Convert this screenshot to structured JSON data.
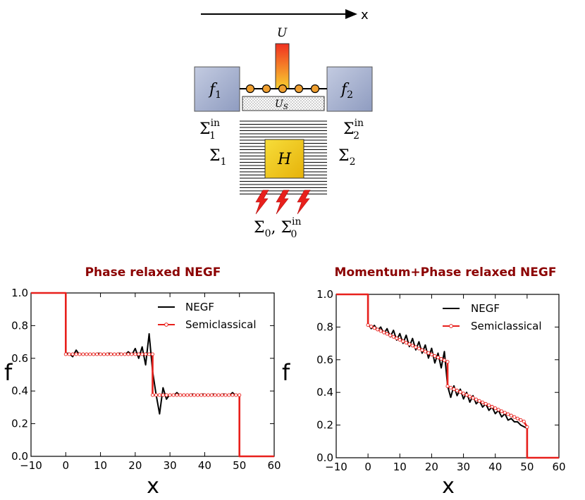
{
  "diagram": {
    "axis_label": "x",
    "reservoir_left": {
      "symbol": "f",
      "sub": "1"
    },
    "reservoir_right": {
      "symbol": "f",
      "sub": "2"
    },
    "potential_top": "U",
    "potential_s": {
      "symbol": "U",
      "sub": "S"
    },
    "hamiltonian": "H",
    "sigma_in_left": {
      "symbol": "Σ",
      "sub": "1",
      "sup": "in"
    },
    "sigma_in_right": {
      "symbol": "Σ",
      "sub": "2",
      "sup": "in"
    },
    "sigma_left": {
      "symbol": "Σ",
      "sub": "1"
    },
    "sigma_right": {
      "symbol": "Σ",
      "sub": "2"
    },
    "sigma_zero": {
      "symbol": "Σ",
      "sub": "0",
      "sep": ", ",
      "symbol2": "Σ",
      "sub2": "0",
      "sup2": "in"
    },
    "colors": {
      "reservoir": "#a9b5d3",
      "hamiltonian": "#f0c419",
      "site": "#f0a030",
      "bolt": "#e8201c",
      "potential_top": "#f03020",
      "potential_bottom": "#f8d030"
    }
  },
  "chart_data": [
    {
      "type": "line",
      "title": "Phase relaxed NEGF",
      "xlabel": "x",
      "ylabel": "f",
      "xlim": [
        -10,
        60
      ],
      "ylim": [
        0.0,
        1.0
      ],
      "xticks": [
        "−10",
        "0",
        "10",
        "20",
        "30",
        "40",
        "50",
        "60"
      ],
      "yticks": [
        "0.0",
        "0.2",
        "0.4",
        "0.6",
        "0.8",
        "1.0"
      ],
      "legend": [
        "NEGF",
        "Semiclassical"
      ],
      "legend_position": "top-right",
      "series": [
        {
          "name": "NEGF",
          "color": "#000000",
          "points": [
            [
              -10,
              1.0
            ],
            [
              0,
              1.0
            ],
            [
              0,
              0.63
            ],
            [
              1,
              0.63
            ],
            [
              2,
              0.61
            ],
            [
              3,
              0.65
            ],
            [
              4,
              0.62
            ],
            [
              5,
              0.63
            ],
            [
              6,
              0.62
            ],
            [
              7,
              0.63
            ],
            [
              8,
              0.62
            ],
            [
              9,
              0.63
            ],
            [
              10,
              0.63
            ],
            [
              11,
              0.62
            ],
            [
              12,
              0.63
            ],
            [
              13,
              0.63
            ],
            [
              14,
              0.62
            ],
            [
              15,
              0.63
            ],
            [
              16,
              0.63
            ],
            [
              17,
              0.62
            ],
            [
              18,
              0.64
            ],
            [
              19,
              0.62
            ],
            [
              20,
              0.66
            ],
            [
              21,
              0.6
            ],
            [
              22,
              0.67
            ],
            [
              23,
              0.56
            ],
            [
              24,
              0.75
            ],
            [
              25,
              0.52
            ],
            [
              26,
              0.38
            ],
            [
              27,
              0.26
            ],
            [
              28,
              0.42
            ],
            [
              29,
              0.35
            ],
            [
              30,
              0.38
            ],
            [
              31,
              0.37
            ],
            [
              32,
              0.39
            ],
            [
              33,
              0.37
            ],
            [
              34,
              0.38
            ],
            [
              35,
              0.37
            ],
            [
              36,
              0.38
            ],
            [
              37,
              0.38
            ],
            [
              38,
              0.37
            ],
            [
              39,
              0.38
            ],
            [
              40,
              0.38
            ],
            [
              41,
              0.37
            ],
            [
              42,
              0.38
            ],
            [
              43,
              0.38
            ],
            [
              44,
              0.37
            ],
            [
              45,
              0.38
            ],
            [
              46,
              0.38
            ],
            [
              47,
              0.37
            ],
            [
              48,
              0.39
            ],
            [
              49,
              0.37
            ],
            [
              50,
              0.38
            ],
            [
              50,
              0.0
            ],
            [
              60,
              0.0
            ]
          ]
        },
        {
          "name": "Semiclassical",
          "color": "#e8201c",
          "points": [
            [
              -10,
              1.0
            ],
            [
              0,
              1.0
            ],
            [
              0,
              0.625
            ],
            [
              1,
              0.625
            ],
            [
              2,
              0.625
            ],
            [
              3,
              0.625
            ],
            [
              4,
              0.625
            ],
            [
              5,
              0.625
            ],
            [
              6,
              0.625
            ],
            [
              7,
              0.625
            ],
            [
              8,
              0.625
            ],
            [
              9,
              0.625
            ],
            [
              10,
              0.625
            ],
            [
              11,
              0.625
            ],
            [
              12,
              0.625
            ],
            [
              13,
              0.625
            ],
            [
              14,
              0.625
            ],
            [
              15,
              0.625
            ],
            [
              16,
              0.625
            ],
            [
              17,
              0.625
            ],
            [
              18,
              0.625
            ],
            [
              19,
              0.625
            ],
            [
              20,
              0.625
            ],
            [
              21,
              0.625
            ],
            [
              22,
              0.625
            ],
            [
              23,
              0.625
            ],
            [
              24,
              0.625
            ],
            [
              25,
              0.625
            ],
            [
              25,
              0.375
            ],
            [
              26,
              0.375
            ],
            [
              27,
              0.375
            ],
            [
              28,
              0.375
            ],
            [
              29,
              0.375
            ],
            [
              30,
              0.375
            ],
            [
              31,
              0.375
            ],
            [
              32,
              0.375
            ],
            [
              33,
              0.375
            ],
            [
              34,
              0.375
            ],
            [
              35,
              0.375
            ],
            [
              36,
              0.375
            ],
            [
              37,
              0.375
            ],
            [
              38,
              0.375
            ],
            [
              39,
              0.375
            ],
            [
              40,
              0.375
            ],
            [
              41,
              0.375
            ],
            [
              42,
              0.375
            ],
            [
              43,
              0.375
            ],
            [
              44,
              0.375
            ],
            [
              45,
              0.375
            ],
            [
              46,
              0.375
            ],
            [
              47,
              0.375
            ],
            [
              48,
              0.375
            ],
            [
              49,
              0.375
            ],
            [
              50,
              0.375
            ],
            [
              50,
              0.0
            ],
            [
              60,
              0.0
            ]
          ]
        }
      ]
    },
    {
      "type": "line",
      "title": "Momentum+Phase relaxed NEGF",
      "xlabel": "x",
      "ylabel": "f",
      "xlim": [
        -10,
        60
      ],
      "ylim": [
        0.0,
        1.0
      ],
      "xticks": [
        "−10",
        "0",
        "10",
        "20",
        "30",
        "40",
        "50",
        "60"
      ],
      "yticks": [
        "0.0",
        "0.2",
        "0.4",
        "0.6",
        "0.8",
        "1.0"
      ],
      "legend": [
        "NEGF",
        "Semiclassical"
      ],
      "legend_position": "top-right",
      "series": [
        {
          "name": "NEGF",
          "color": "#000000",
          "points": [
            [
              -10,
              1.0
            ],
            [
              0,
              1.0
            ],
            [
              0,
              0.82
            ],
            [
              1,
              0.79
            ],
            [
              2,
              0.81
            ],
            [
              3,
              0.78
            ],
            [
              4,
              0.8
            ],
            [
              5,
              0.76
            ],
            [
              6,
              0.79
            ],
            [
              7,
              0.74
            ],
            [
              8,
              0.78
            ],
            [
              9,
              0.72
            ],
            [
              10,
              0.76
            ],
            [
              11,
              0.7
            ],
            [
              12,
              0.75
            ],
            [
              13,
              0.68
            ],
            [
              14,
              0.73
            ],
            [
              15,
              0.66
            ],
            [
              16,
              0.71
            ],
            [
              17,
              0.64
            ],
            [
              18,
              0.69
            ],
            [
              19,
              0.61
            ],
            [
              20,
              0.67
            ],
            [
              21,
              0.58
            ],
            [
              22,
              0.64
            ],
            [
              23,
              0.55
            ],
            [
              24,
              0.65
            ],
            [
              25,
              0.44
            ],
            [
              26,
              0.37
            ],
            [
              27,
              0.44
            ],
            [
              28,
              0.38
            ],
            [
              29,
              0.42
            ],
            [
              30,
              0.36
            ],
            [
              31,
              0.4
            ],
            [
              32,
              0.34
            ],
            [
              33,
              0.38
            ],
            [
              34,
              0.33
            ],
            [
              35,
              0.35
            ],
            [
              36,
              0.31
            ],
            [
              37,
              0.33
            ],
            [
              38,
              0.29
            ],
            [
              39,
              0.31
            ],
            [
              40,
              0.27
            ],
            [
              41,
              0.29
            ],
            [
              42,
              0.25
            ],
            [
              43,
              0.27
            ],
            [
              44,
              0.23
            ],
            [
              45,
              0.24
            ],
            [
              46,
              0.22
            ],
            [
              47,
              0.22
            ],
            [
              48,
              0.2
            ],
            [
              49,
              0.19
            ],
            [
              50,
              0.18
            ],
            [
              50,
              0.0
            ],
            [
              60,
              0.0
            ]
          ]
        },
        {
          "name": "Semiclassical",
          "color": "#e8201c",
          "points": [
            [
              -10,
              1.0
            ],
            [
              0,
              1.0
            ],
            [
              0,
              0.812
            ],
            [
              1,
              0.803
            ],
            [
              2,
              0.794
            ],
            [
              3,
              0.785
            ],
            [
              4,
              0.776
            ],
            [
              5,
              0.767
            ],
            [
              6,
              0.758
            ],
            [
              7,
              0.749
            ],
            [
              8,
              0.74
            ],
            [
              9,
              0.731
            ],
            [
              10,
              0.722
            ],
            [
              11,
              0.713
            ],
            [
              12,
              0.704
            ],
            [
              13,
              0.695
            ],
            [
              14,
              0.686
            ],
            [
              15,
              0.677
            ],
            [
              16,
              0.668
            ],
            [
              17,
              0.659
            ],
            [
              18,
              0.65
            ],
            [
              19,
              0.641
            ],
            [
              20,
              0.632
            ],
            [
              21,
              0.623
            ],
            [
              22,
              0.614
            ],
            [
              23,
              0.605
            ],
            [
              24,
              0.596
            ],
            [
              25,
              0.587
            ],
            [
              25,
              0.438
            ],
            [
              26,
              0.429
            ],
            [
              27,
              0.42
            ],
            [
              28,
              0.411
            ],
            [
              29,
              0.402
            ],
            [
              30,
              0.393
            ],
            [
              31,
              0.384
            ],
            [
              32,
              0.375
            ],
            [
              33,
              0.366
            ],
            [
              34,
              0.357
            ],
            [
              35,
              0.348
            ],
            [
              36,
              0.339
            ],
            [
              37,
              0.33
            ],
            [
              38,
              0.321
            ],
            [
              39,
              0.312
            ],
            [
              40,
              0.303
            ],
            [
              41,
              0.294
            ],
            [
              42,
              0.285
            ],
            [
              43,
              0.276
            ],
            [
              44,
              0.267
            ],
            [
              45,
              0.258
            ],
            [
              46,
              0.249
            ],
            [
              47,
              0.24
            ],
            [
              48,
              0.231
            ],
            [
              49,
              0.222
            ],
            [
              50,
              0.188
            ],
            [
              50,
              0.0
            ],
            [
              60,
              0.0
            ]
          ]
        }
      ]
    }
  ]
}
